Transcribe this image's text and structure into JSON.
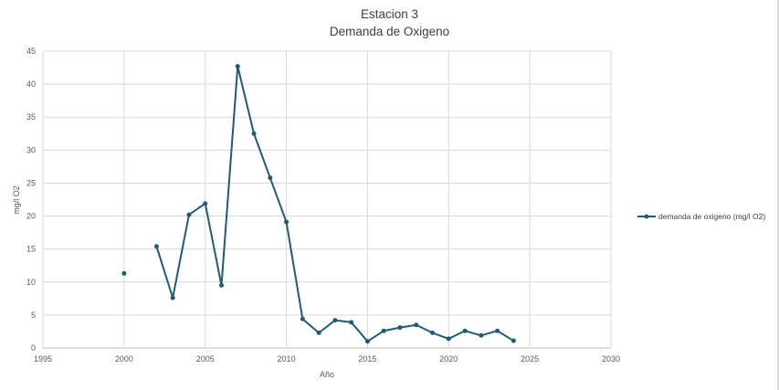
{
  "chart_data": {
    "type": "line",
    "title": "Estacion 3",
    "subtitle": "Demanda de Oxigeno",
    "xlabel": "Año",
    "ylabel": "mg/l  O2",
    "xlim": [
      1995,
      2030
    ],
    "ylim": [
      0,
      45
    ],
    "x_ticks": [
      "1995",
      "2000",
      "2005",
      "2010",
      "2015",
      "2020",
      "2025",
      "2030"
    ],
    "y_ticks": [
      "0",
      "5",
      "10",
      "15",
      "20",
      "25",
      "30",
      "35",
      "40",
      "45"
    ],
    "grid": true,
    "legend_position": "right",
    "series": [
      {
        "name": "demanda de oxigeno (mg/l O2)",
        "color": "#1f5c73",
        "points": [
          {
            "x": 2000,
            "y": 11.3
          },
          {
            "x": 2002,
            "y": 15.4
          },
          {
            "x": 2003,
            "y": 7.6
          },
          {
            "x": 2004,
            "y": 20.2
          },
          {
            "x": 2005,
            "y": 21.9
          },
          {
            "x": 2006,
            "y": 9.5
          },
          {
            "x": 2007,
            "y": 42.7
          },
          {
            "x": 2008,
            "y": 32.5
          },
          {
            "x": 2009,
            "y": 25.8
          },
          {
            "x": 2010,
            "y": 19.1
          },
          {
            "x": 2011,
            "y": 4.4
          },
          {
            "x": 2012,
            "y": 2.3
          },
          {
            "x": 2013,
            "y": 4.2
          },
          {
            "x": 2014,
            "y": 3.9
          },
          {
            "x": 2015,
            "y": 1.0
          },
          {
            "x": 2016,
            "y": 2.6
          },
          {
            "x": 2017,
            "y": 3.1
          },
          {
            "x": 2018,
            "y": 3.5
          },
          {
            "x": 2019,
            "y": 2.3
          },
          {
            "x": 2020,
            "y": 1.4
          },
          {
            "x": 2021,
            "y": 2.6
          },
          {
            "x": 2022,
            "y": 1.9
          },
          {
            "x": 2023,
            "y": 2.6
          },
          {
            "x": 2024,
            "y": 1.1
          }
        ]
      }
    ]
  }
}
